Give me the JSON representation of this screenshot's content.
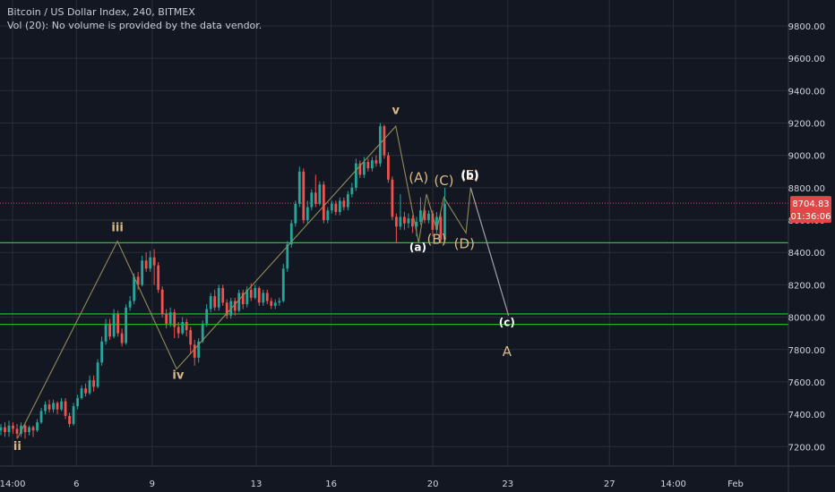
{
  "header": {
    "title": "Bitcoin / US Dollar Index, 240, BITMEX",
    "subtitle": "Vol (20): No volume is provided by the data vendor."
  },
  "colors": {
    "background": "#131722",
    "grid": "#2a2e39",
    "up": "#26a69a",
    "down": "#ef5350",
    "support_line": "#25c725",
    "wave_line": "#8f8a5a",
    "wave_label": "#d7b98a",
    "sub_label": "#ffffff",
    "price_line": "#e04848",
    "axis_text": "#d1d4dc"
  },
  "chart_data": {
    "type": "candlestick",
    "ylim": [
      7080,
      9960
    ],
    "xlim": [
      0,
      1
    ],
    "y_ticks": [
      "7200.00",
      "7400.00",
      "7600.00",
      "7800.00",
      "8000.00",
      "8200.00",
      "8400.00",
      "8600.00",
      "8800.00",
      "9000.00",
      "9200.00",
      "9400.00",
      "9600.00",
      "9800.00"
    ],
    "y_tick_values": [
      7200,
      7400,
      7600,
      7800,
      8000,
      8200,
      8400,
      8600,
      8800,
      9000,
      9200,
      9400,
      9600,
      9800
    ],
    "x_ticks": [
      {
        "label": "14:00",
        "x": 0.016
      },
      {
        "label": "6",
        "x": 0.097
      },
      {
        "label": "9",
        "x": 0.193
      },
      {
        "label": "13",
        "x": 0.325
      },
      {
        "label": "16",
        "x": 0.42
      },
      {
        "label": "20",
        "x": 0.549
      },
      {
        "label": "23",
        "x": 0.644
      },
      {
        "label": "27",
        "x": 0.773
      },
      {
        "label": "14:00",
        "x": 0.854
      },
      {
        "label": "Feb",
        "x": 0.933
      }
    ],
    "current_price": {
      "value": 8704.83,
      "label": "8704.83",
      "countdown": "01:36:06"
    },
    "support_levels": [
      8460,
      8020,
      7955
    ],
    "wave_path": [
      {
        "x": 0.022,
        "y": 7250
      },
      {
        "x": 0.149,
        "y": 8470
      },
      {
        "x": 0.224,
        "y": 7680
      },
      {
        "x": 0.502,
        "y": 9180
      },
      {
        "x": 0.531,
        "y": 8460
      },
      {
        "x": 0.541,
        "y": 8760
      },
      {
        "x": 0.554,
        "y": 8540
      },
      {
        "x": 0.563,
        "y": 8740
      },
      {
        "x": 0.591,
        "y": 8520
      },
      {
        "x": 0.597,
        "y": 8800
      },
      {
        "x": 0.645,
        "y": 8010
      }
    ],
    "wave_labels": [
      {
        "text": "ii",
        "x": 0.022,
        "y": 7180,
        "style": "wave"
      },
      {
        "text": "iii",
        "x": 0.149,
        "y": 8530,
        "style": "wave"
      },
      {
        "text": "iv",
        "x": 0.226,
        "y": 7620,
        "style": "wave"
      },
      {
        "text": "v",
        "x": 0.502,
        "y": 9255,
        "style": "wave"
      },
      {
        "text": "(A)",
        "x": 0.531,
        "y": 8835,
        "style": "wave-big"
      },
      {
        "text": "(C)",
        "x": 0.563,
        "y": 8815,
        "style": "wave-big"
      },
      {
        "text": "(E)",
        "x": 0.596,
        "y": 8850,
        "style": "wave-big"
      },
      {
        "text": "(b)",
        "x": 0.596,
        "y": 8855,
        "style": "sub"
      },
      {
        "text": "(B)",
        "x": 0.554,
        "y": 8455,
        "style": "wave-big"
      },
      {
        "text": "(D)",
        "x": 0.589,
        "y": 8425,
        "style": "wave-big"
      },
      {
        "text": "(a)",
        "x": 0.53,
        "y": 8410,
        "style": "sub"
      },
      {
        "text": "(c)",
        "x": 0.643,
        "y": 7945,
        "style": "sub"
      },
      {
        "text": "A",
        "x": 0.643,
        "y": 7760,
        "style": "wave-big"
      }
    ],
    "candles": [
      [
        7300,
        7320,
        7270,
        7340
      ],
      [
        7320,
        7290,
        7260,
        7350
      ],
      [
        7290,
        7330,
        7260,
        7360
      ],
      [
        7330,
        7310,
        7280,
        7350
      ],
      [
        7310,
        7280,
        7250,
        7340
      ],
      [
        7280,
        7330,
        7260,
        7350
      ],
      [
        7330,
        7290,
        7250,
        7350
      ],
      [
        7290,
        7320,
        7270,
        7330
      ],
      [
        7320,
        7300,
        7260,
        7330
      ],
      [
        7300,
        7350,
        7290,
        7370
      ],
      [
        7350,
        7420,
        7340,
        7440
      ],
      [
        7420,
        7460,
        7400,
        7480
      ],
      [
        7460,
        7430,
        7410,
        7490
      ],
      [
        7430,
        7470,
        7410,
        7490
      ],
      [
        7470,
        7430,
        7400,
        7480
      ],
      [
        7430,
        7480,
        7420,
        7500
      ],
      [
        7480,
        7390,
        7370,
        7500
      ],
      [
        7390,
        7340,
        7320,
        7410
      ],
      [
        7340,
        7450,
        7330,
        7470
      ],
      [
        7450,
        7500,
        7430,
        7520
      ],
      [
        7500,
        7560,
        7490,
        7580
      ],
      [
        7560,
        7530,
        7510,
        7590
      ],
      [
        7530,
        7610,
        7520,
        7640
      ],
      [
        7610,
        7570,
        7540,
        7640
      ],
      [
        7570,
        7720,
        7560,
        7740
      ],
      [
        7720,
        7850,
        7700,
        7880
      ],
      [
        7850,
        7960,
        7830,
        7990
      ],
      [
        7960,
        7880,
        7860,
        7990
      ],
      [
        7880,
        8020,
        7870,
        8050
      ],
      [
        8020,
        7900,
        7880,
        8040
      ],
      [
        7900,
        7840,
        7820,
        7930
      ],
      [
        7840,
        8060,
        7830,
        8080
      ],
      [
        8060,
        8100,
        8040,
        8130
      ],
      [
        8100,
        8250,
        8080,
        8270
      ],
      [
        8250,
        8200,
        8170,
        8280
      ],
      [
        8200,
        8350,
        8190,
        8380
      ],
      [
        8350,
        8300,
        8280,
        8400
      ],
      [
        8300,
        8370,
        8280,
        8410
      ],
      [
        8370,
        8320,
        8200,
        8420
      ],
      [
        8320,
        8170,
        8150,
        8340
      ],
      [
        8170,
        8020,
        8000,
        8190
      ],
      [
        8020,
        7960,
        7930,
        8050
      ],
      [
        7960,
        8030,
        7940,
        8060
      ],
      [
        8030,
        7940,
        7870,
        8050
      ],
      [
        7940,
        7900,
        7870,
        7970
      ],
      [
        7900,
        7970,
        7890,
        8000
      ],
      [
        7970,
        7920,
        7880,
        7990
      ],
      [
        7920,
        7830,
        7770,
        7940
      ],
      [
        7830,
        7750,
        7700,
        7860
      ],
      [
        7750,
        7850,
        7720,
        7870
      ],
      [
        7850,
        7960,
        7840,
        7980
      ],
      [
        7960,
        8050,
        7940,
        8080
      ],
      [
        8050,
        8130,
        8030,
        8150
      ],
      [
        8130,
        8060,
        8040,
        8170
      ],
      [
        8060,
        8180,
        8040,
        8200
      ],
      [
        8180,
        8090,
        8070,
        8200
      ],
      [
        8090,
        8010,
        7990,
        8110
      ],
      [
        8010,
        8100,
        7990,
        8120
      ],
      [
        8100,
        8040,
        8010,
        8120
      ],
      [
        8040,
        8150,
        8030,
        8170
      ],
      [
        8150,
        8080,
        8050,
        8170
      ],
      [
        8080,
        8170,
        8060,
        8190
      ],
      [
        8170,
        8120,
        8100,
        8210
      ],
      [
        8120,
        8180,
        8110,
        8200
      ],
      [
        8180,
        8090,
        8070,
        8190
      ],
      [
        8090,
        8150,
        8070,
        8170
      ],
      [
        8150,
        8100,
        8080,
        8170
      ],
      [
        8100,
        8070,
        8050,
        8120
      ],
      [
        8070,
        8090,
        8050,
        8110
      ],
      [
        8090,
        8100,
        8070,
        8120
      ],
      [
        8100,
        8300,
        8090,
        8330
      ],
      [
        8300,
        8450,
        8280,
        8470
      ],
      [
        8450,
        8580,
        8430,
        8600
      ],
      [
        8580,
        8700,
        8560,
        8720
      ],
      [
        8700,
        8900,
        8680,
        8930
      ],
      [
        8900,
        8600,
        8580,
        8920
      ],
      [
        8600,
        8680,
        8580,
        8720
      ],
      [
        8680,
        8770,
        8660,
        8790
      ],
      [
        8770,
        8700,
        8680,
        8880
      ],
      [
        8700,
        8820,
        8690,
        8840
      ],
      [
        8820,
        8600,
        8580,
        8840
      ],
      [
        8600,
        8660,
        8580,
        8680
      ],
      [
        8660,
        8700,
        8640,
        8720
      ],
      [
        8700,
        8650,
        8630,
        8720
      ],
      [
        8650,
        8720,
        8630,
        8740
      ],
      [
        8720,
        8680,
        8660,
        8740
      ],
      [
        8680,
        8760,
        8660,
        8780
      ],
      [
        8760,
        8800,
        8740,
        8830
      ],
      [
        8800,
        8950,
        8780,
        8980
      ],
      [
        8950,
        8880,
        8860,
        8970
      ],
      [
        8880,
        8960,
        8860,
        8990
      ],
      [
        8960,
        8920,
        8900,
        8980
      ],
      [
        8920,
        8970,
        8900,
        8990
      ],
      [
        8970,
        8950,
        8930,
        9000
      ],
      [
        8950,
        9180,
        8930,
        9200
      ],
      [
        9180,
        9000,
        8980,
        9190
      ],
      [
        9000,
        8850,
        8830,
        9020
      ],
      [
        8850,
        8620,
        8600,
        8870
      ],
      [
        8620,
        8560,
        8460,
        8640
      ],
      [
        8560,
        8620,
        8540,
        8760
      ],
      [
        8620,
        8580,
        8540,
        8650
      ],
      [
        8580,
        8610,
        8550,
        8640
      ],
      [
        8610,
        8560,
        8520,
        8630
      ],
      [
        8560,
        8590,
        8500,
        8620
      ],
      [
        8590,
        8660,
        8570,
        8740
      ],
      [
        8660,
        8600,
        8580,
        8680
      ],
      [
        8600,
        8640,
        8580,
        8660
      ],
      [
        8640,
        8540,
        8500,
        8660
      ],
      [
        8540,
        8620,
        8520,
        8650
      ],
      [
        8620,
        8480,
        8460,
        8640
      ],
      [
        8480,
        8700,
        8470,
        8800
      ]
    ]
  }
}
